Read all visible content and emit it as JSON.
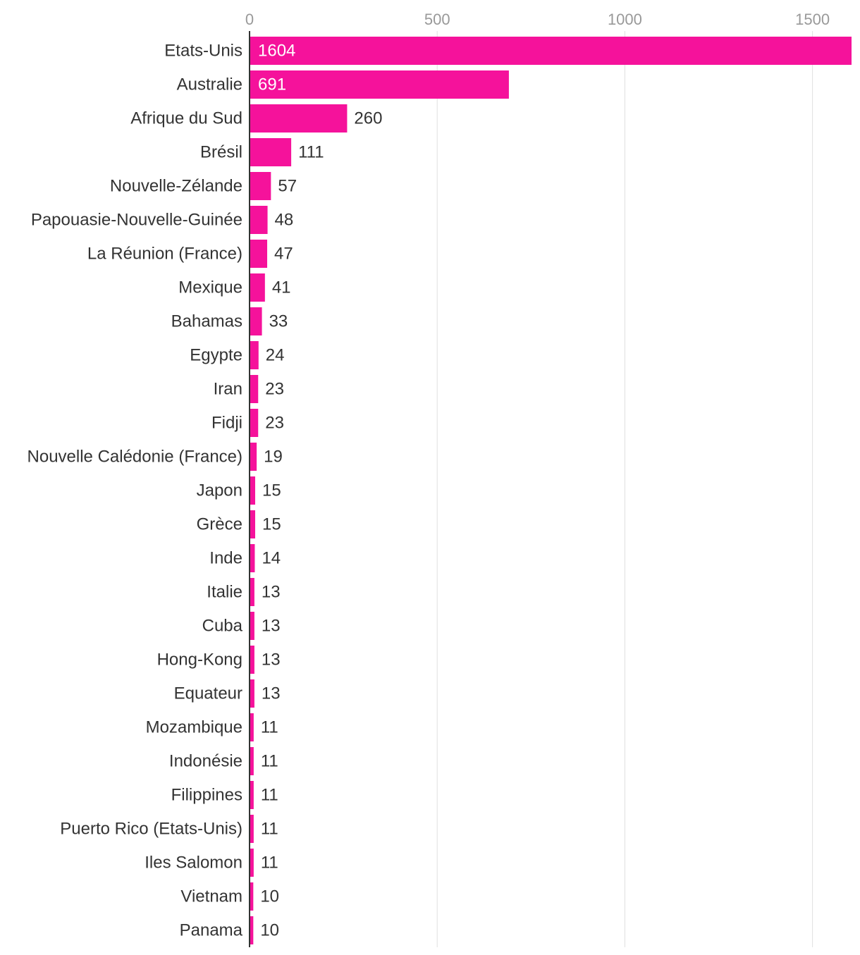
{
  "chart_data": {
    "type": "bar",
    "orientation": "horizontal",
    "title": "",
    "xlabel": "",
    "ylabel": "",
    "xlim": [
      0,
      1604
    ],
    "x_ticks": [
      0,
      500,
      1000,
      1500
    ],
    "grid": true,
    "bar_color": "#f5129b",
    "label_color": "#333333",
    "tick_color": "#999999",
    "grid_color": "#e0e0e0",
    "inside_label_color": "#ffffff",
    "categories": [
      "Etats-Unis",
      "Australie",
      "Afrique du Sud",
      "Brésil",
      "Nouvelle-Zélande",
      "Papouasie-Nouvelle-Guinée",
      "La Réunion (France)",
      "Mexique",
      "Bahamas",
      "Egypte",
      "Iran",
      "Fidji",
      "Nouvelle Calédonie (France)",
      "Japon",
      "Grèce",
      "Inde",
      "Italie",
      "Cuba",
      "Hong-Kong",
      "Equateur",
      "Mozambique",
      "Indonésie",
      "Filippines",
      "Puerto Rico (Etats-Unis)",
      "Iles Salomon",
      "Vietnam",
      "Panama"
    ],
    "values": [
      1604,
      691,
      260,
      111,
      57,
      48,
      47,
      41,
      33,
      24,
      23,
      23,
      19,
      15,
      15,
      14,
      13,
      13,
      13,
      13,
      11,
      11,
      11,
      11,
      11,
      10,
      10
    ]
  }
}
